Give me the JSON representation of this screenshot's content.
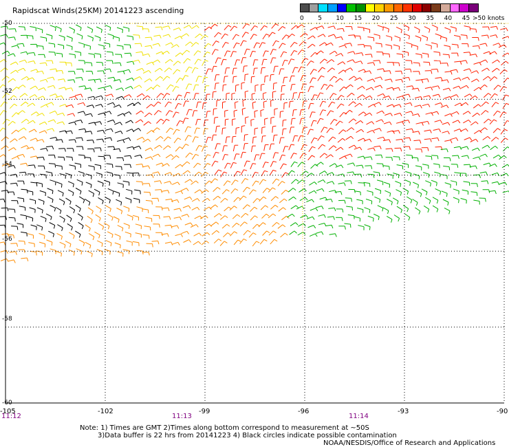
{
  "title": "Rapidscat Winds(25KM) 20141223 ascending",
  "legend": {
    "unit_label": ">50 knots",
    "ticks": [
      "0",
      "5",
      "10",
      "15",
      "20",
      "25",
      "30",
      "35",
      "40",
      "45"
    ],
    "colors": [
      "#4c4c4c",
      "#9e9e9e",
      "#00e0ff",
      "#00a0ff",
      "#0000ff",
      "#00c000",
      "#009000",
      "#ffff00",
      "#ffd000",
      "#ff9900",
      "#ff6600",
      "#ff3300",
      "#e00000",
      "#8b0000",
      "#7a3b1a",
      "#d4aa9a",
      "#ff66ff",
      "#cc00cc",
      "#7a007a"
    ]
  },
  "axes": {
    "lat_labels": [
      "-50",
      "-52",
      "-54",
      "-56",
      "-58",
      "-60"
    ],
    "lon_labels": [
      "-105",
      "-102",
      "-99",
      "-96",
      "-93",
      "-90"
    ],
    "time_labels": [
      "11:12",
      "11:13",
      "11:14"
    ],
    "lat_range": [
      -60,
      -50
    ],
    "lon_range": [
      -105,
      -90
    ]
  },
  "notes": {
    "line1": "Note: 1) Times are GMT 2)Times along bottom correspond to measurement at ~50S",
    "line2": "3)Data buffer is 22 hrs from 20141223 4) Black circles indicate possible contamination",
    "credit": "NOAA/NESDIS/Office of Research and Applications"
  },
  "colors": {
    "grid": "#000000",
    "swath_edge": "#ffd000",
    "time_label": "#800080",
    "black": "#000000",
    "green": "#00b000",
    "yellow": "#f0e000",
    "orange": "#ff8c00",
    "red": "#ff2000",
    "blue": "#0000ff"
  }
}
